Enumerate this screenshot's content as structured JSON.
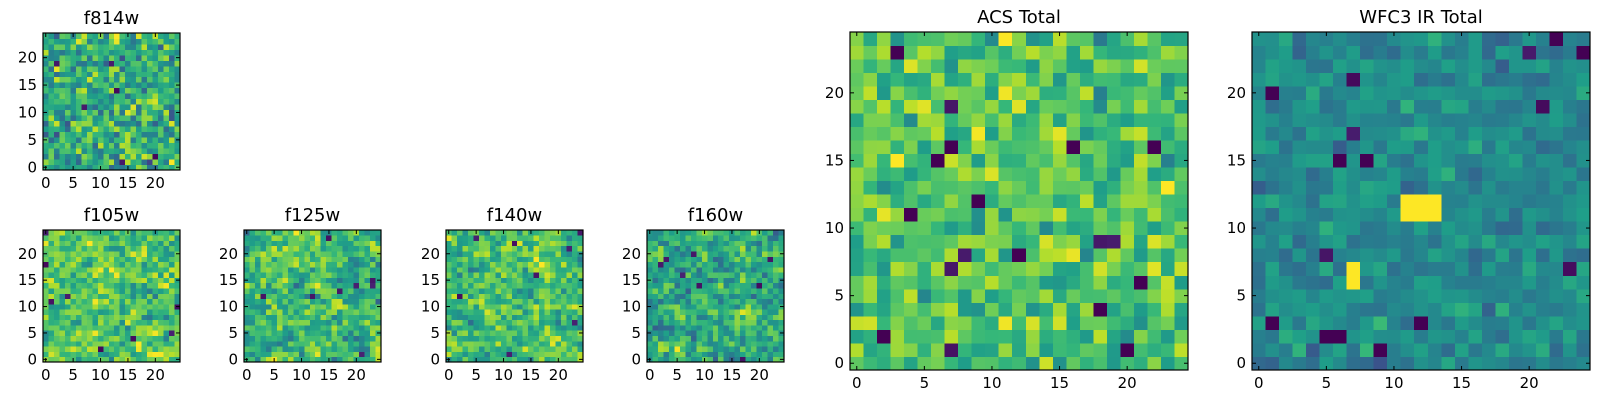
{
  "chart_data": [
    {
      "type": "heatmap",
      "title": "f814w",
      "colormap": "viridis",
      "grid_size": 25,
      "x_ticks": [
        0,
        5,
        10,
        15,
        20
      ],
      "y_ticks": [
        0,
        5,
        10,
        15,
        20
      ],
      "value_range": [
        0,
        1
      ],
      "seed": 17,
      "mean": 0.62,
      "spread": 0.45,
      "smooth": 0
    },
    {
      "type": "heatmap",
      "title": "f105w",
      "colormap": "viridis",
      "grid_size": 25,
      "x_ticks": [
        0,
        5,
        10,
        15,
        20
      ],
      "y_ticks": [
        0,
        5,
        10,
        15,
        20
      ],
      "value_range": [
        0,
        1
      ],
      "seed": 29,
      "mean": 0.72,
      "spread": 0.55,
      "smooth": 1
    },
    {
      "type": "heatmap",
      "title": "f125w",
      "colormap": "viridis",
      "grid_size": 25,
      "x_ticks": [
        0,
        5,
        10,
        15,
        20
      ],
      "y_ticks": [
        0,
        5,
        10,
        15,
        20
      ],
      "value_range": [
        0,
        1
      ],
      "seed": 41,
      "mean": 0.66,
      "spread": 0.55,
      "smooth": 1
    },
    {
      "type": "heatmap",
      "title": "f140w",
      "colormap": "viridis",
      "grid_size": 25,
      "x_ticks": [
        0,
        5,
        10,
        15,
        20
      ],
      "y_ticks": [
        0,
        5,
        10,
        15,
        20
      ],
      "value_range": [
        0,
        1
      ],
      "seed": 53,
      "mean": 0.7,
      "spread": 0.5,
      "smooth": 1
    },
    {
      "type": "heatmap",
      "title": "f160w",
      "colormap": "viridis",
      "grid_size": 25,
      "x_ticks": [
        0,
        5,
        10,
        15,
        20
      ],
      "y_ticks": [
        0,
        5,
        10,
        15,
        20
      ],
      "value_range": [
        0,
        1
      ],
      "seed": 67,
      "mean": 0.62,
      "spread": 0.55,
      "smooth": 1
    },
    {
      "type": "heatmap",
      "title": "ACS Total",
      "colormap": "viridis",
      "grid_size": 25,
      "x_ticks": [
        0,
        5,
        10,
        15,
        20
      ],
      "y_ticks": [
        0,
        5,
        10,
        15,
        20
      ],
      "value_range": [
        0,
        1
      ],
      "seed": 79,
      "mean": 0.72,
      "spread": 0.35,
      "smooth": 0,
      "dark_pixels": [
        [
          2,
          2
        ],
        [
          4,
          11
        ],
        [
          9,
          12
        ],
        [
          16,
          16
        ],
        [
          20,
          1
        ],
        [
          22,
          16
        ],
        [
          18,
          4
        ],
        [
          21,
          6
        ],
        [
          3,
          23
        ],
        [
          12,
          8
        ],
        [
          7,
          16
        ],
        [
          6,
          15
        ]
      ]
    },
    {
      "type": "heatmap",
      "title": "WFC3 IR Total",
      "colormap": "viridis",
      "grid_size": 25,
      "x_ticks": [
        0,
        5,
        10,
        15,
        20
      ],
      "y_ticks": [
        0,
        5,
        10,
        15,
        20
      ],
      "value_range": [
        0,
        1
      ],
      "seed": 97,
      "mean": 0.47,
      "spread": 0.22,
      "smooth": 0,
      "bright_pixels": [
        [
          11,
          12
        ],
        [
          12,
          12
        ],
        [
          13,
          12
        ],
        [
          11,
          11
        ],
        [
          12,
          11
        ],
        [
          13,
          11
        ],
        [
          7,
          7
        ],
        [
          7,
          6
        ]
      ],
      "dark_pixels": [
        [
          1,
          20
        ],
        [
          6,
          15
        ],
        [
          8,
          15
        ],
        [
          5,
          2
        ],
        [
          6,
          2
        ],
        [
          1,
          3
        ],
        [
          12,
          3
        ],
        [
          24,
          23
        ],
        [
          22,
          24
        ],
        [
          9,
          1
        ]
      ]
    }
  ]
}
